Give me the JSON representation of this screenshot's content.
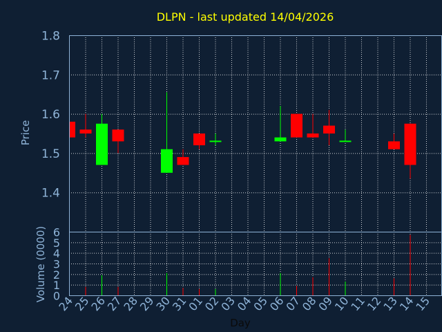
{
  "chart_data": [
    {
      "type": "candlestick",
      "title": "DLPN - last updated 14/04/2026",
      "ylabel": "Price",
      "ylim": [
        1.3,
        1.8
      ],
      "yticks": [
        "1.4",
        "1.5",
        "1.6",
        "1.7",
        "1.8"
      ],
      "grid": true,
      "categories": [
        "24",
        "25",
        "26",
        "27",
        "28",
        "29",
        "30",
        "31",
        "01",
        "02",
        "03",
        "04",
        "05",
        "06",
        "07",
        "08",
        "09",
        "10",
        "11",
        "12",
        "13",
        "14",
        "15"
      ],
      "colors": {
        "up": "#00ff00",
        "down": "#ff0000",
        "grid": "#ffffff",
        "axis": "#8fb4d8"
      },
      "candles": [
        {
          "day": "24",
          "open": 1.58,
          "close": 1.54,
          "high": 1.58,
          "low": 1.54
        },
        {
          "day": "25",
          "open": 1.56,
          "close": 1.55,
          "high": 1.6,
          "low": 1.54
        },
        {
          "day": "26",
          "open": 1.47,
          "close": 1.575,
          "high": 1.6,
          "low": 1.47
        },
        {
          "day": "27",
          "open": 1.56,
          "close": 1.53,
          "high": 1.56,
          "low": 1.5
        },
        {
          "day": "30",
          "open": 1.45,
          "close": 1.51,
          "high": 1.655,
          "low": 1.45
        },
        {
          "day": "31",
          "open": 1.49,
          "close": 1.47,
          "high": 1.51,
          "low": 1.47
        },
        {
          "day": "01",
          "open": 1.55,
          "close": 1.52,
          "high": 1.55,
          "low": 1.51
        },
        {
          "day": "02",
          "open": 1.53,
          "close": 1.53,
          "high": 1.55,
          "low": 1.52
        },
        {
          "day": "06",
          "open": 1.53,
          "close": 1.54,
          "high": 1.62,
          "low": 1.53
        },
        {
          "day": "07",
          "open": 1.6,
          "close": 1.54,
          "high": 1.6,
          "low": 1.54
        },
        {
          "day": "08",
          "open": 1.55,
          "close": 1.54,
          "high": 1.6,
          "low": 1.54
        },
        {
          "day": "09",
          "open": 1.57,
          "close": 1.55,
          "high": 1.61,
          "low": 1.52
        },
        {
          "day": "10",
          "open": 1.53,
          "close": 1.53,
          "high": 1.56,
          "low": 1.53
        },
        {
          "day": "13",
          "open": 1.53,
          "close": 1.51,
          "high": 1.55,
          "low": 1.51
        },
        {
          "day": "14",
          "open": 1.575,
          "close": 1.47,
          "high": 1.575,
          "low": 1.435
        }
      ]
    },
    {
      "type": "bar",
      "ylabel": "Volume (0000)",
      "xlabel": "Day",
      "ylim": [
        0,
        6
      ],
      "yticks": [
        "0",
        "1",
        "2",
        "3",
        "4",
        "5",
        "6"
      ],
      "categories": [
        "24",
        "25",
        "26",
        "27",
        "28",
        "29",
        "30",
        "31",
        "01",
        "02",
        "03",
        "04",
        "05",
        "06",
        "07",
        "08",
        "09",
        "10",
        "11",
        "12",
        "13",
        "14",
        "15"
      ],
      "bars": [
        {
          "day": "25",
          "value": 0.8,
          "dir": "down"
        },
        {
          "day": "26",
          "value": 1.9,
          "dir": "up"
        },
        {
          "day": "27",
          "value": 0.8,
          "dir": "down"
        },
        {
          "day": "30",
          "value": 2.1,
          "dir": "up"
        },
        {
          "day": "31",
          "value": 0.7,
          "dir": "down"
        },
        {
          "day": "01",
          "value": 0.6,
          "dir": "down"
        },
        {
          "day": "02",
          "value": 0.6,
          "dir": "up"
        },
        {
          "day": "06",
          "value": 2.1,
          "dir": "up"
        },
        {
          "day": "07",
          "value": 0.9,
          "dir": "down"
        },
        {
          "day": "08",
          "value": 1.7,
          "dir": "down"
        },
        {
          "day": "09",
          "value": 3.5,
          "dir": "down"
        },
        {
          "day": "10",
          "value": 1.3,
          "dir": "up"
        },
        {
          "day": "13",
          "value": 1.6,
          "dir": "down"
        },
        {
          "day": "14",
          "value": 5.7,
          "dir": "down"
        }
      ]
    }
  ]
}
